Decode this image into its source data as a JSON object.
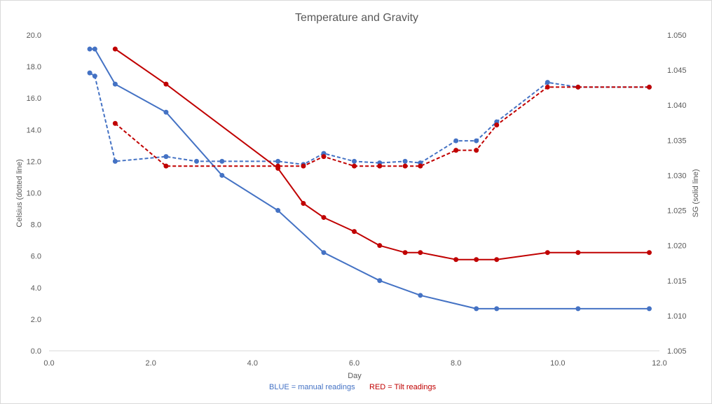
{
  "chart_data": {
    "type": "line",
    "title": "Temperature and Gravity",
    "xlabel": "Day",
    "ylabel_left": "Celsius (dotted line)",
    "ylabel_right": "SG (solid line)",
    "xlim": [
      0,
      12
    ],
    "ylim_left": [
      0,
      20
    ],
    "ylim_right": [
      1.005,
      1.05
    ],
    "x_ticks": [
      "0.0",
      "2.0",
      "4.0",
      "6.0",
      "8.0",
      "10.0",
      "12.0"
    ],
    "y_left_ticks": [
      "0.0",
      "2.0",
      "4.0",
      "6.0",
      "8.0",
      "10.0",
      "12.0",
      "14.0",
      "16.0",
      "18.0",
      "20.0"
    ],
    "y_right_ticks": [
      "1.005",
      "1.010",
      "1.015",
      "1.020",
      "1.025",
      "1.030",
      "1.035",
      "1.040",
      "1.045",
      "1.050"
    ],
    "grid": false,
    "series": [
      {
        "axis": "right",
        "style": "solid",
        "color": "#4472c4",
        "points": [
          [
            0.8,
            1.048
          ],
          [
            0.9,
            1.048
          ],
          [
            1.3,
            1.043
          ],
          [
            2.3,
            1.039
          ],
          [
            3.4,
            1.03
          ],
          [
            4.5,
            1.025
          ],
          [
            5.4,
            1.019
          ],
          [
            6.5,
            1.015
          ],
          [
            7.3,
            1.0129
          ],
          [
            8.4,
            1.011
          ],
          [
            8.8,
            1.011
          ],
          [
            10.4,
            1.011
          ],
          [
            11.8,
            1.011
          ]
        ]
      },
      {
        "axis": "left",
        "style": "dotted",
        "color": "#4472c4",
        "points": [
          [
            0.8,
            17.6
          ],
          [
            0.9,
            17.4
          ],
          [
            1.3,
            12.0
          ],
          [
            2.3,
            12.3
          ],
          [
            2.9,
            12.0
          ],
          [
            3.4,
            12.0
          ],
          [
            4.5,
            12.0
          ],
          [
            5.0,
            11.8
          ],
          [
            5.4,
            12.5
          ],
          [
            6.0,
            12.0
          ],
          [
            6.5,
            11.9
          ],
          [
            7.0,
            12.0
          ],
          [
            7.3,
            11.9
          ],
          [
            8.0,
            13.3
          ],
          [
            8.4,
            13.3
          ],
          [
            8.8,
            14.5
          ],
          [
            9.8,
            17.0
          ],
          [
            10.4,
            16.7
          ],
          [
            11.8,
            16.7
          ]
        ]
      },
      {
        "axis": "right",
        "style": "solid",
        "color": "#c00000",
        "points": [
          [
            1.3,
            1.048
          ],
          [
            2.3,
            1.043
          ],
          [
            4.5,
            1.031
          ],
          [
            5.0,
            1.026
          ],
          [
            5.4,
            1.024
          ],
          [
            6.0,
            1.022
          ],
          [
            6.5,
            1.02
          ],
          [
            7.0,
            1.019
          ],
          [
            7.3,
            1.019
          ],
          [
            8.0,
            1.018
          ],
          [
            8.4,
            1.018
          ],
          [
            8.8,
            1.018
          ],
          [
            9.8,
            1.019
          ],
          [
            10.4,
            1.019
          ],
          [
            11.8,
            1.019
          ]
        ]
      },
      {
        "axis": "left",
        "style": "dotted",
        "color": "#c00000",
        "points": [
          [
            1.3,
            14.4
          ],
          [
            2.3,
            11.7
          ],
          [
            4.5,
            11.7
          ],
          [
            5.0,
            11.7
          ],
          [
            5.4,
            12.3
          ],
          [
            6.0,
            11.7
          ],
          [
            6.5,
            11.7
          ],
          [
            7.0,
            11.7
          ],
          [
            7.3,
            11.7
          ],
          [
            8.0,
            12.7
          ],
          [
            8.4,
            12.7
          ],
          [
            8.8,
            14.3
          ],
          [
            9.8,
            16.7
          ],
          [
            10.4,
            16.7
          ],
          [
            11.8,
            16.7
          ]
        ]
      }
    ],
    "annotation": {
      "blue_text": "BLUE = manual readings",
      "red_text": "RED = Tilt readings",
      "blue_color": "#4472c4",
      "red_color": "#c00000"
    }
  }
}
